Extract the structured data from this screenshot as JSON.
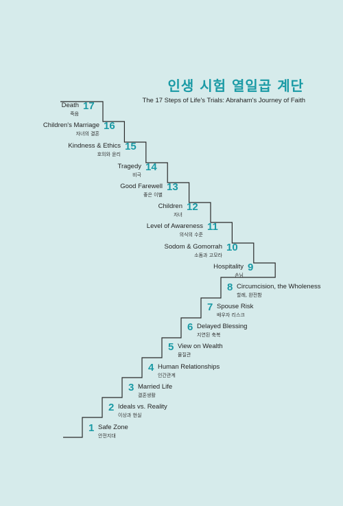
{
  "title": "인생 시험 열일곱 계단",
  "subtitle": "The 17 Steps of Life's Trials: Abraham's Journey of Faith",
  "colors": {
    "accent": "#1a9aa5",
    "background": "#d6ebeb",
    "line": "#2a2a2a"
  },
  "steps": [
    {
      "number": "1",
      "label_en": "Safe Zone",
      "label_ko": "안전지대"
    },
    {
      "number": "2",
      "label_en": "Ideals vs. Reality",
      "label_ko": "이상과 현실"
    },
    {
      "number": "3",
      "label_en": "Married Life",
      "label_ko": "결혼생활"
    },
    {
      "number": "4",
      "label_en": "Human Relationships",
      "label_ko": "인간관계"
    },
    {
      "number": "5",
      "label_en": "View on Wealth",
      "label_ko": "물질관"
    },
    {
      "number": "6",
      "label_en": "Delayed Blessing",
      "label_ko": "지연된 축복"
    },
    {
      "number": "7",
      "label_en": "Spouse Risk",
      "label_ko": "배우자 리스크"
    },
    {
      "number": "8",
      "label_en": "Circumcision, the Wholeness",
      "label_ko": "할례, 완전함"
    },
    {
      "number": "9",
      "label_en": "Hospitality",
      "label_ko": "손님"
    },
    {
      "number": "10",
      "label_en": "Sodom & Gomorrah",
      "label_ko": "소돔과 고모라"
    },
    {
      "number": "11",
      "label_en": "Level of Awareness",
      "label_ko": "의식의 수준"
    },
    {
      "number": "12",
      "label_en": "Children",
      "label_ko": "자녀"
    },
    {
      "number": "13",
      "label_en": "Good Farewell",
      "label_ko": "좋은 이별"
    },
    {
      "number": "14",
      "label_en": "Tragedy",
      "label_ko": "비극"
    },
    {
      "number": "15",
      "label_en": "Kindness & Ethics",
      "label_ko": "호의와 윤리"
    },
    {
      "number": "16",
      "label_en": "Children's Marriage",
      "label_ko": "자녀의 결혼"
    },
    {
      "number": "17",
      "label_en": "Death",
      "label_ko": "죽음"
    }
  ]
}
